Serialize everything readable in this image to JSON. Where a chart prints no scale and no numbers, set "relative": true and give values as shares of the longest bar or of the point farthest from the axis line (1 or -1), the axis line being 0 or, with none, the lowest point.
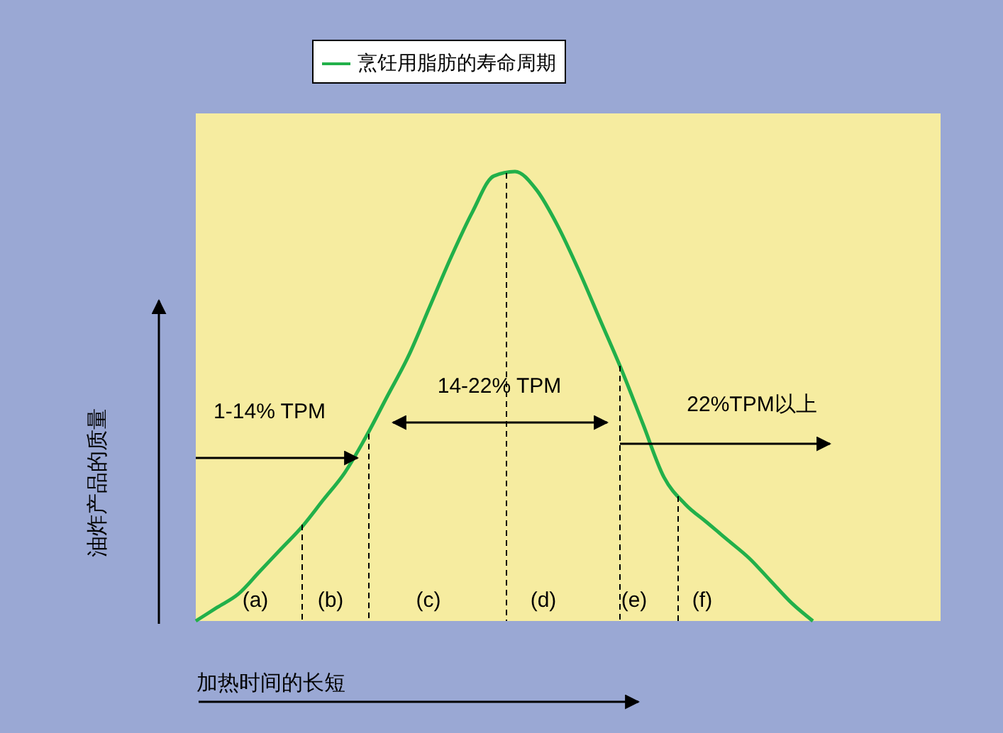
{
  "chart_data": {
    "type": "line",
    "relative": true,
    "legend": "top",
    "xlabel": "加热时间的长短",
    "ylabel": "油炸产品的质量",
    "categories": [
      null,
      null,
      null,
      null,
      null,
      null,
      null,
      null,
      null,
      null,
      null,
      null,
      null,
      null,
      null,
      null,
      null,
      null,
      null,
      null,
      null,
      null,
      null,
      null,
      null,
      null,
      null,
      null,
      null,
      null,
      null,
      null,
      null,
      null,
      null,
      null
    ],
    "series": [
      {
        "name": "烹饪用脂肪的寿命周期",
        "color": "#22b04a",
        "values": [
          0,
          0.03,
          0.06,
          0.11,
          0.16,
          0.21,
          0.27,
          0.33,
          0.41,
          0.5,
          0.59,
          0.7,
          0.81,
          0.91,
          0.99,
          1,
          0.96,
          0.88,
          0.78,
          0.67,
          0.56,
          0.44,
          0.32,
          0.26,
          0.22,
          0.18,
          0.14,
          0.09,
          0.04,
          0,
          null,
          null,
          null,
          null,
          null,
          null
        ]
      }
    ],
    "annotations": [
      "1-14% TPM",
      "14-22% TPM",
      "22%TPM以上",
      "(a)",
      "(b)",
      "(c)",
      "(d)",
      "(e)",
      "(f)"
    ]
  }
}
